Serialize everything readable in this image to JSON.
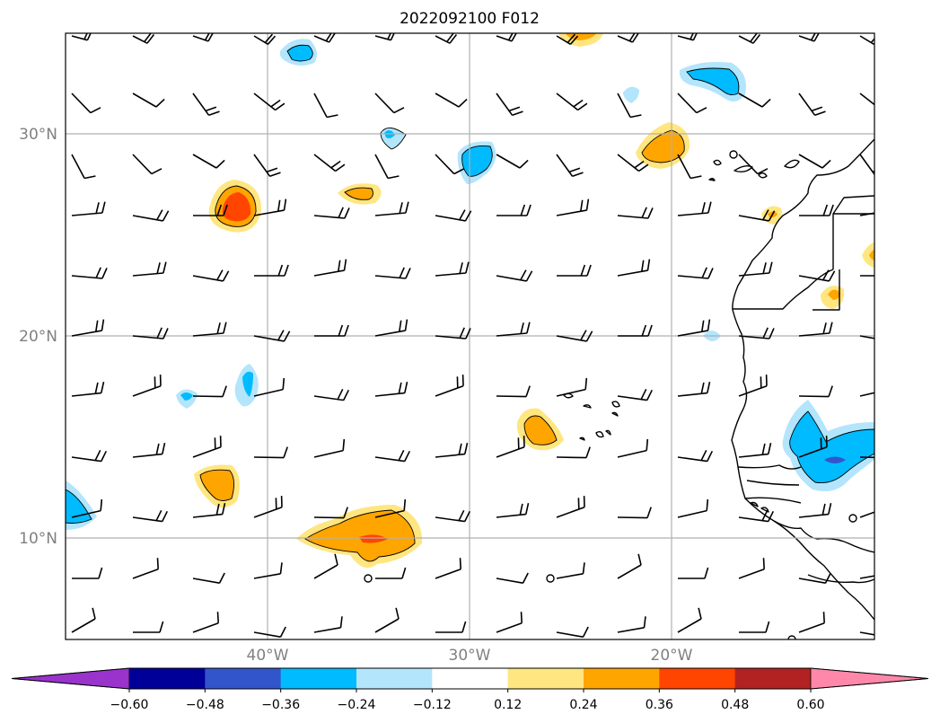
{
  "title": "2022092100 F012",
  "lat_labels": [
    "30°N",
    "20°N",
    "10°N"
  ],
  "lon_labels": [
    "40°W",
    "30°W",
    "20°W"
  ],
  "colorbar": {
    "ticks": [
      "−0.60",
      "−0.48",
      "−0.36",
      "−0.24",
      "−0.12",
      "0.12",
      "0.24",
      "0.36",
      "0.48",
      "0.60"
    ],
    "colors": [
      "#9933cc",
      "#000099",
      "#3355cc",
      "#00bbff",
      "#b3e5fc",
      "#ffffff",
      "#ffe680",
      "#ffa500",
      "#ff4500",
      "#b22222",
      "#ff88aa"
    ]
  },
  "colors": {
    "light_blue": "#b3e5fc",
    "blue": "#00bbff",
    "yellow": "#ffe680",
    "orange": "#ffa500",
    "red": "#ff4500",
    "purple": "#9933cc"
  }
}
